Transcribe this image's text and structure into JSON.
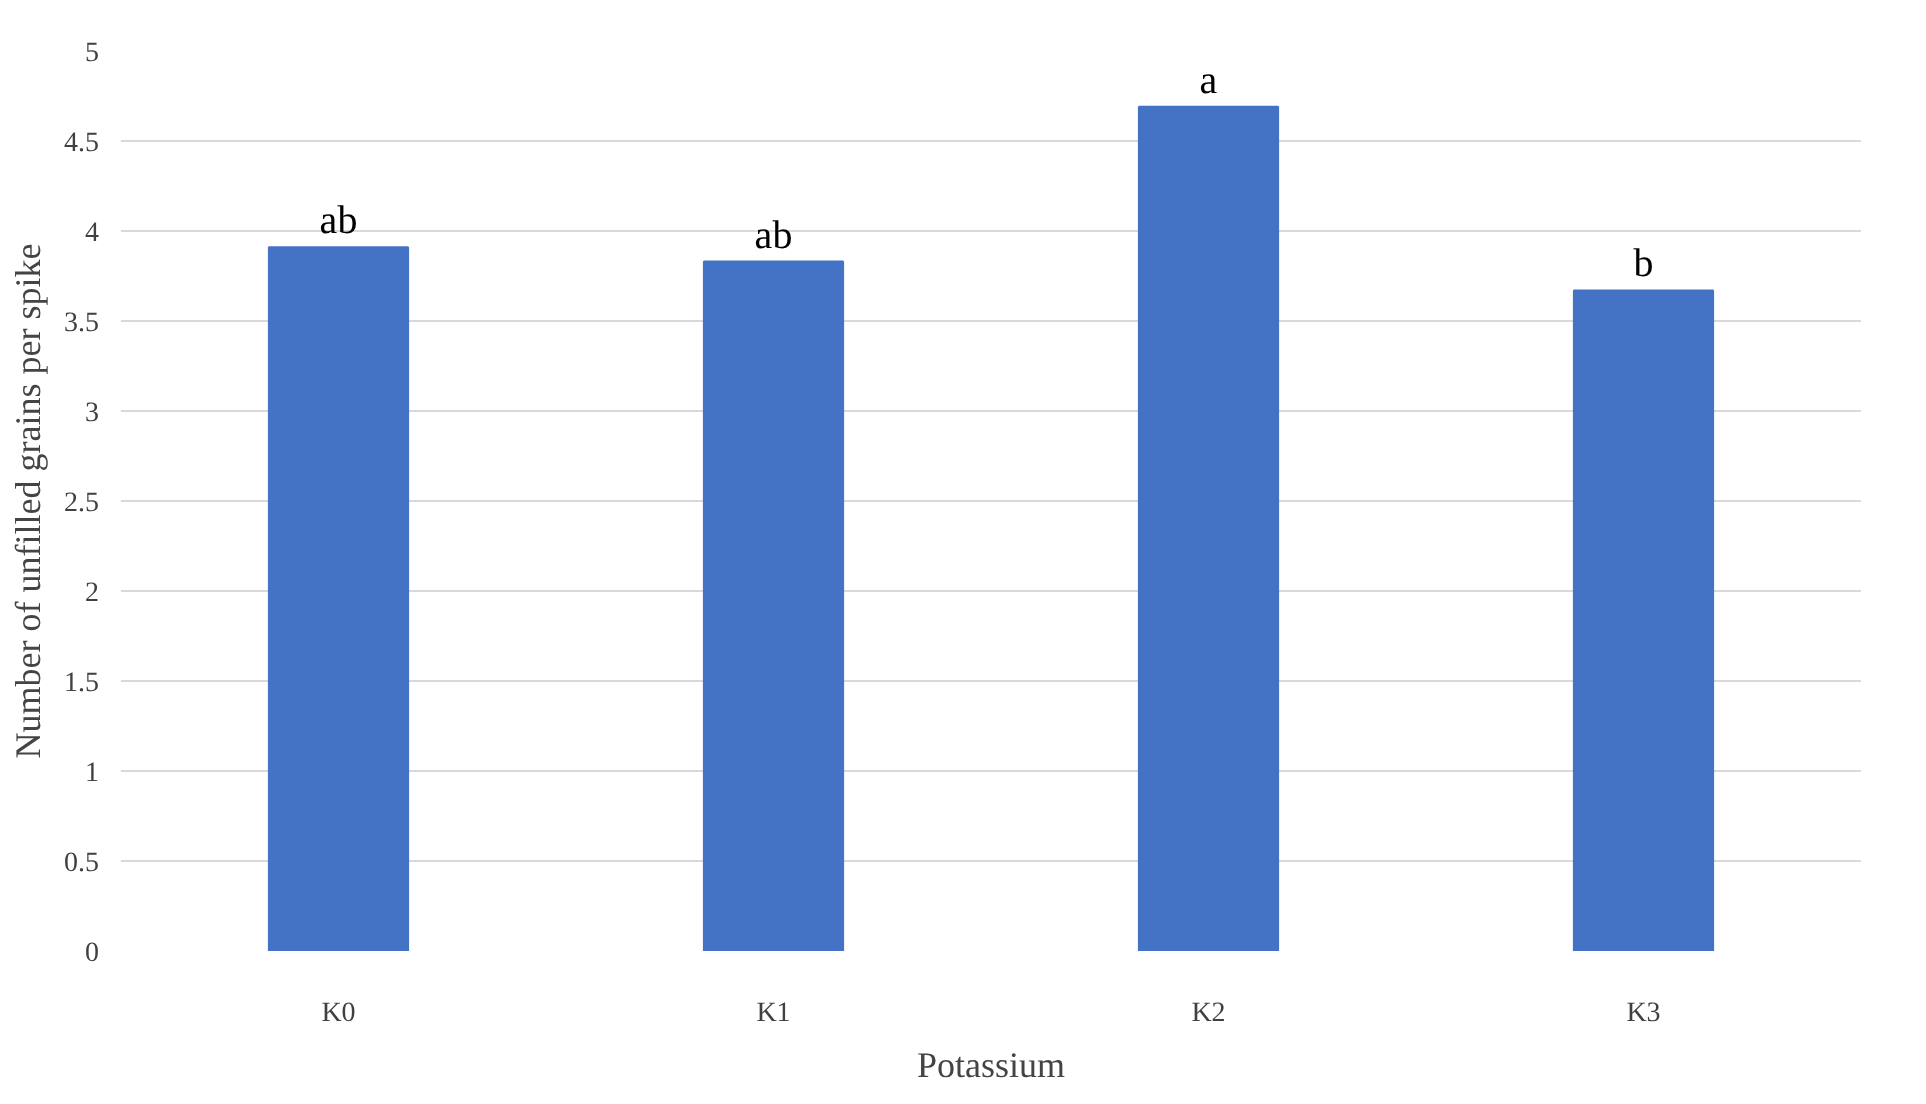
{
  "chart_data": {
    "type": "bar",
    "xlabel": "Potassium",
    "ylabel": "Number of unfilled grains per spike",
    "categories": [
      "K0",
      "K1",
      "K2",
      "K3"
    ],
    "values": [
      3.91,
      3.83,
      4.69,
      3.67
    ],
    "color": "#4472c4",
    "ylim": [
      0,
      5
    ],
    "yticks": [
      0,
      {
        "value": 0.5,
        "label": "0.5"
      },
      1,
      {
        "value": 1.5,
        "label": "1.5"
      },
      2,
      {
        "value": 2.5,
        "label": "2.5"
      },
      3,
      {
        "value": 3.5,
        "label": "3.5"
      },
      4,
      {
        "value": 4.5,
        "label": "4.5"
      },
      5
    ],
    "grid": "y",
    "annotations": [
      {
        "text": "ab",
        "x": "K0",
        "y": 3.91
      },
      {
        "text": "ab",
        "x": "K1",
        "y": 3.83
      },
      {
        "text": "a",
        "x": "K2",
        "y": 4.69
      },
      {
        "text": "b",
        "x": "K3",
        "y": 3.67
      }
    ]
  }
}
